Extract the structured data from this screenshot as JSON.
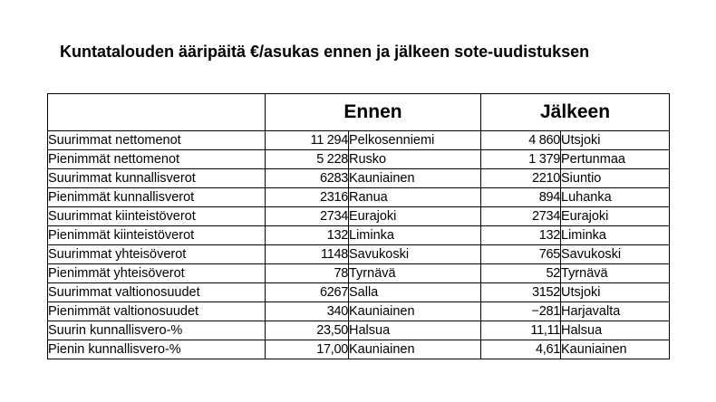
{
  "title": "Kuntatalouden ääripäitä €/asukas ennen ja jälkeen sote-uudistuksen",
  "header": {
    "corner": "",
    "before": "Ennen",
    "after": "Jälkeen"
  },
  "rows": [
    {
      "label": "Suurimmat nettomenot",
      "before_value": "11 294",
      "before_municipality": "Pelkosenniemi",
      "after_value": "4 860",
      "after_municipality": "Utsjoki"
    },
    {
      "label": "Pienimmät nettomenot",
      "before_value": "5 228",
      "before_municipality": "Rusko",
      "after_value": "1 379",
      "after_municipality": "Pertunmaa"
    },
    {
      "label": "Suurimmat kunnallisverot",
      "before_value": "6283",
      "before_municipality": "Kauniainen",
      "after_value": "2210",
      "after_municipality": "Siuntio"
    },
    {
      "label": "Pienimmät kunnallisverot",
      "before_value": "2316",
      "before_municipality": "Ranua",
      "after_value": "894",
      "after_municipality": "Luhanka"
    },
    {
      "label": "Suurimmat kiinteistöverot",
      "before_value": "2734",
      "before_municipality": "Eurajoki",
      "after_value": "2734",
      "after_municipality": "Eurajoki"
    },
    {
      "label": "Pienimmät kiinteistöverot",
      "before_value": "132",
      "before_municipality": "Liminka",
      "after_value": "132",
      "after_municipality": "Liminka"
    },
    {
      "label": "Suurimmat yhteisöverot",
      "before_value": "1148",
      "before_municipality": "Savukoski",
      "after_value": "765",
      "after_municipality": "Savukoski"
    },
    {
      "label": "Pienimmät yhteisöverot",
      "before_value": "78",
      "before_municipality": "Tyrnävä",
      "after_value": "52",
      "after_municipality": "Tyrnävä"
    },
    {
      "label": "Suurimmat valtionosuudet",
      "before_value": "6267",
      "before_municipality": "Salla",
      "after_value": "3152",
      "after_municipality": "Utsjoki"
    },
    {
      "label": "Pienimmät valtionosuudet",
      "before_value": "340",
      "before_municipality": "Kauniainen",
      "after_value": "−281",
      "after_municipality": "Harjavalta"
    },
    {
      "label": "Suurin kunnallisvero-%",
      "before_value": "23,50",
      "before_municipality": "Halsua",
      "after_value": "11,11",
      "after_municipality": "Halsua"
    },
    {
      "label": "Pienin kunnallisvero-%",
      "before_value": "17,00",
      "before_municipality": "Kauniainen",
      "after_value": "4,61",
      "after_municipality": "Kauniainen"
    }
  ]
}
